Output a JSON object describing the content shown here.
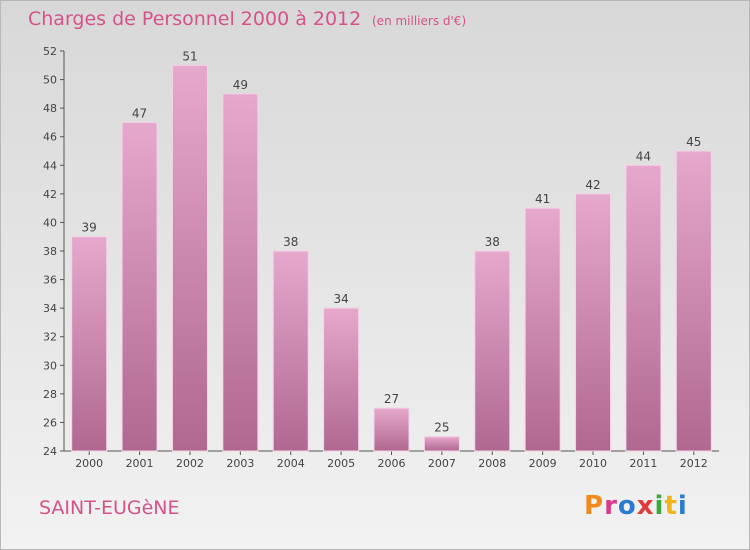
{
  "header": {
    "title": "Charges de Personnel 2000 à 2012",
    "subtitle": "(en milliers d'€)"
  },
  "footer": {
    "commune": "SAINT-EUGèNE",
    "logo_text": "Proxiti",
    "logo_colors": [
      "#f08a1a",
      "#d93a8a",
      "#2b7bd0",
      "#e23a3a",
      "#3aa83a",
      "#f0b41a",
      "#2b7bd0"
    ]
  },
  "colors": {
    "bar_top": "#e6a8cc",
    "bar_bottom": "#b06890",
    "bar_edge": "#f3d3e5",
    "text": "#444444",
    "accent": "#d5528a"
  },
  "chart_data": {
    "type": "bar",
    "categories": [
      "2000",
      "2001",
      "2002",
      "2003",
      "2004",
      "2005",
      "2006",
      "2007",
      "2008",
      "2009",
      "2010",
      "2011",
      "2012"
    ],
    "values": [
      39,
      47,
      51,
      49,
      38,
      34,
      27,
      25,
      38,
      41,
      42,
      44,
      45
    ],
    "data_labels": [
      "39",
      "47",
      "51",
      "49",
      "38",
      "34",
      "27",
      "25",
      "38",
      "41",
      "42",
      "44",
      "45"
    ],
    "title": "Charges de Personnel 2000 à 2012",
    "subtitle": "(en milliers d'€)",
    "ylim": [
      24,
      52
    ],
    "yticks": [
      24,
      26,
      28,
      30,
      32,
      34,
      36,
      38,
      40,
      42,
      44,
      46,
      48,
      50,
      52
    ],
    "grid": false,
    "legend": "none"
  }
}
